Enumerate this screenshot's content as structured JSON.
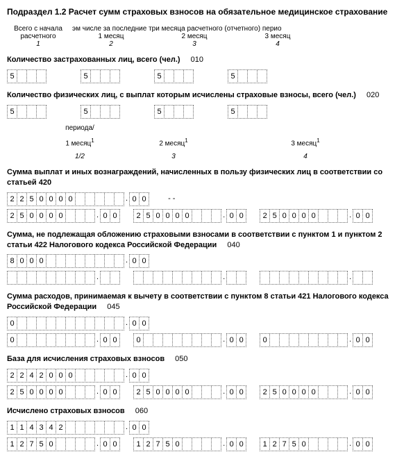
{
  "title": "Подраздел 1.2 Расчет сумм страховых взносов на обязательное медицинское страхование",
  "header_top": {
    "col0_l1": "Всего с начала",
    "col0_l2": "расчетного",
    "line2": "эм числе за последние три месяца расчетного (отчетного) перио",
    "m1": "1 месяц",
    "m2": "2 месяц",
    "m3": "3 месяц",
    "n1": "1",
    "n2": "2",
    "n3": "3",
    "n4": "4"
  },
  "period_hdr": {
    "lbl": "периода/",
    "m1": "1 месяц",
    "m2": "2 месяц",
    "m3": "3 месяц",
    "sup": "1",
    "n1": "1/2",
    "n2": "3",
    "n3": "4"
  },
  "sec010": {
    "label": "Количество застрахованных лиц, всего (чел.)",
    "code": "010",
    "v0": [
      "5",
      "",
      "",
      ""
    ],
    "v1": [
      "5",
      "",
      "",
      ""
    ],
    "v2": [
      "5",
      "",
      "",
      ""
    ],
    "v3": [
      "5",
      "",
      "",
      ""
    ]
  },
  "sec020": {
    "label": "Количество физических лиц, с выплат которым исчислены страховые взносы, всего (чел.)",
    "code": "020",
    "v0": [
      "5",
      "",
      "",
      ""
    ],
    "v1": [
      "5",
      "",
      "",
      ""
    ],
    "v2": [
      "5",
      "",
      "",
      ""
    ],
    "v3": [
      "5",
      "",
      "",
      ""
    ]
  },
  "sec030": {
    "label": "Сумма выплат и иных вознаграждений, начисленных в пользу физических лиц в соответствии со статьей 420",
    "r1_int": [
      "2",
      "2",
      "5",
      "0",
      "0",
      "0",
      "0",
      "",
      "",
      "",
      "",
      ""
    ],
    "r1_dec": [
      "0",
      "0"
    ],
    "r2a_int": [
      "2",
      "5",
      "0",
      "0",
      "0",
      "0",
      "",
      "",
      "",
      "",
      "",
      ""
    ],
    "r2a_dec": [
      "0",
      "0"
    ],
    "r2b_int": [
      "2",
      "5",
      "0",
      "0",
      "0",
      "0",
      "",
      "",
      "",
      "",
      "",
      ""
    ],
    "r2b_dec": [
      "0",
      "0"
    ],
    "r2c_int": [
      "2",
      "5",
      "0",
      "0",
      "0",
      "0",
      "",
      "",
      "",
      "",
      "",
      ""
    ],
    "r2c_dec": [
      "0",
      "0"
    ]
  },
  "sec040": {
    "label": "Сумма, не подлежащая обложению страховыми взносами в соответствии с пунктом 1 и пунктом 2 статьи 422 Налогового кодекса Российской Федерации",
    "code": "040",
    "r1_int": [
      "8",
      "0",
      "0",
      "0",
      "",
      "",
      "",
      "",
      "",
      "",
      "",
      ""
    ],
    "r1_dec": [
      "0",
      "0"
    ],
    "r2a_int": [
      "",
      "",
      "",
      "",
      "",
      "",
      "",
      "",
      "",
      "",
      "",
      ""
    ],
    "r2a_dec": [
      "",
      ""
    ],
    "r2b_int": [
      "",
      "",
      "",
      "",
      "",
      "",
      "",
      "",
      "",
      "",
      "",
      ""
    ],
    "r2b_dec": [
      "",
      ""
    ],
    "r2c_int": [
      "",
      "",
      "",
      "",
      "",
      "",
      "",
      "",
      "",
      "",
      "",
      ""
    ],
    "r2c_dec": [
      "",
      ""
    ]
  },
  "sec045": {
    "label": "Сумма расходов, принимаемая к вычету в соответствии с пунктом 8 статьи 421 Налогового кодекса Российской Федерации",
    "code": "045",
    "r1_int": [
      "0",
      "",
      "",
      "",
      "",
      "",
      "",
      "",
      "",
      "",
      "",
      ""
    ],
    "r1_dec": [
      "0",
      "0"
    ],
    "r2a_int": [
      "0",
      "",
      "",
      "",
      "",
      "",
      "",
      "",
      "",
      "",
      "",
      ""
    ],
    "r2a_dec": [
      "0",
      "0"
    ],
    "r2b_int": [
      "0",
      "",
      "",
      "",
      "",
      "",
      "",
      "",
      "",
      "",
      "",
      ""
    ],
    "r2b_dec": [
      "0",
      "0"
    ],
    "r2c_int": [
      "0",
      "",
      "",
      "",
      "",
      "",
      "",
      "",
      "",
      "",
      "",
      ""
    ],
    "r2c_dec": [
      "0",
      "0"
    ]
  },
  "sec050": {
    "label": "База для исчисления страховых взносов",
    "code": "050",
    "r1_int": [
      "2",
      "2",
      "4",
      "2",
      "0",
      "0",
      "0",
      "",
      "",
      "",
      "",
      ""
    ],
    "r1_dec": [
      "0",
      "0"
    ],
    "r2a_int": [
      "2",
      "5",
      "0",
      "0",
      "0",
      "0",
      "",
      "",
      "",
      "",
      "",
      ""
    ],
    "r2a_dec": [
      "0",
      "0"
    ],
    "r2b_int": [
      "2",
      "5",
      "0",
      "0",
      "0",
      "0",
      "",
      "",
      "",
      "",
      "",
      ""
    ],
    "r2b_dec": [
      "0",
      "0"
    ],
    "r2c_int": [
      "2",
      "5",
      "0",
      "0",
      "0",
      "0",
      "",
      "",
      "",
      "",
      "",
      ""
    ],
    "r2c_dec": [
      "0",
      "0"
    ]
  },
  "sec060": {
    "label": "Исчислено страховых взносов",
    "code": "060",
    "r1_int": [
      "1",
      "1",
      "4",
      "3",
      "4",
      "2",
      "",
      "",
      "",
      "",
      "",
      ""
    ],
    "r1_dec": [
      "0",
      "0"
    ],
    "r2a_int": [
      "1",
      "2",
      "7",
      "5",
      "0",
      "",
      "",
      "",
      "",
      "",
      "",
      ""
    ],
    "r2a_dec": [
      "0",
      "0"
    ],
    "r2b_int": [
      "1",
      "2",
      "7",
      "5",
      "0",
      "",
      "",
      "",
      "",
      "",
      "",
      ""
    ],
    "r2b_dec": [
      "0",
      "0"
    ],
    "r2c_int": [
      "1",
      "2",
      "7",
      "5",
      "0",
      "",
      "",
      "",
      "",
      "",
      "",
      ""
    ],
    "r2c_dec": [
      "0",
      "0"
    ]
  },
  "dot": "."
}
